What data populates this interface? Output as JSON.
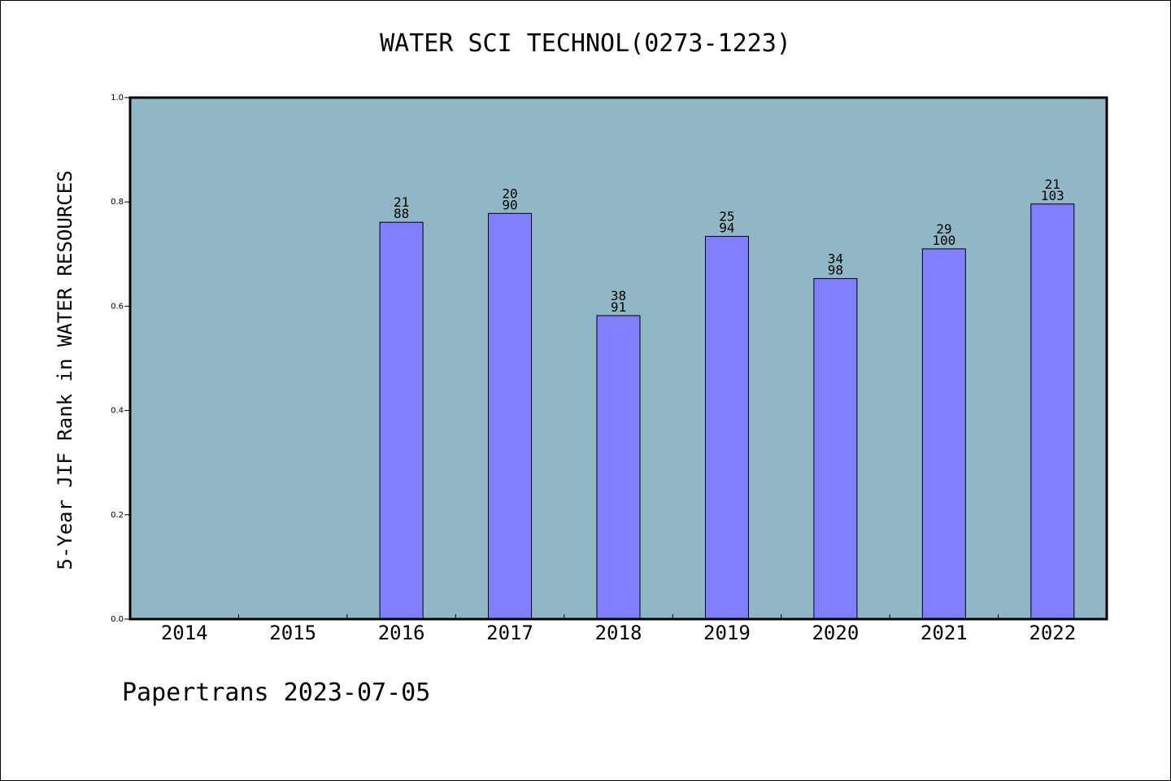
{
  "chart_data": {
    "type": "bar",
    "title": "WATER SCI TECHNOL(0273-1223)",
    "ylabel": "5-Year JIF Rank in WATER RESOURCES",
    "xlabel": "",
    "ylim": [
      0,
      1.0
    ],
    "yticks": [
      "0.0",
      "0.2",
      "0.4",
      "0.6",
      "0.8",
      "1.0"
    ],
    "categories": [
      "2014",
      "2015",
      "2016",
      "2017",
      "2018",
      "2019",
      "2020",
      "2021",
      "2022"
    ],
    "values": [
      null,
      null,
      0.761,
      0.778,
      0.582,
      0.734,
      0.653,
      0.71,
      0.796
    ],
    "rank": [
      null,
      null,
      "21",
      "20",
      "38",
      "25",
      "34",
      "29",
      "21"
    ],
    "total": [
      null,
      null,
      "88",
      "90",
      "91",
      "94",
      "98",
      "100",
      "103"
    ],
    "grid": false,
    "legend": "none"
  },
  "colors": {
    "plot_background": "#8fb7c6",
    "bar_fill": "#8080ff",
    "axis": "#000000"
  },
  "footer": "Papertrans 2023-07-05"
}
